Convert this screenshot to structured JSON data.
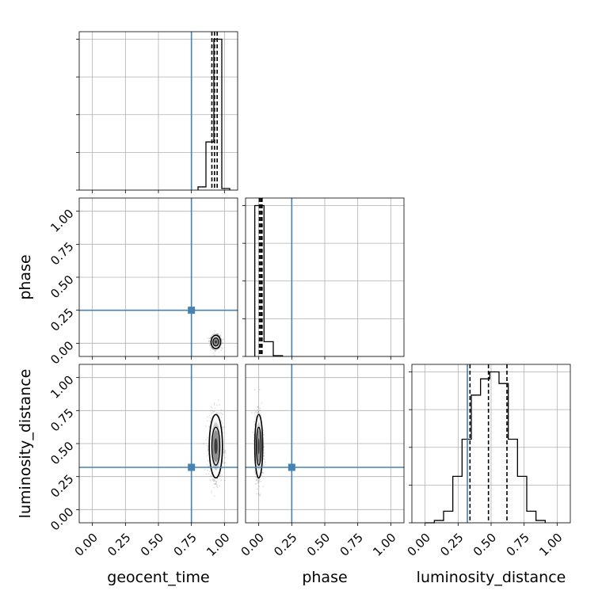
{
  "chart_data": {
    "type": "corner",
    "parameters": [
      "geocent_time",
      "phase",
      "luminosity_distance"
    ],
    "axis_labels": [
      "geocent_time",
      "phase",
      "luminosity_distance"
    ],
    "range": [
      -0.1,
      1.1
    ],
    "ticks": [
      0.0,
      0.25,
      0.5,
      0.75,
      1.0
    ],
    "tick_labels": [
      "0.00",
      "0.25",
      "0.50",
      "0.75",
      "1.00"
    ],
    "grid": true,
    "truth_color": "#4682b4",
    "line_color": "#000000",
    "truths": {
      "geocent_time": 0.75,
      "phase": 0.25,
      "luminosity_distance": 0.32
    },
    "histograms": {
      "geocent_time": {
        "bin_edges": [
          0.8,
          0.86,
          0.92,
          0.98,
          1.04
        ],
        "counts": [
          0.02,
          0.3,
          0.94,
          0.01
        ],
        "quantiles": [
          0.905,
          0.925,
          0.945
        ]
      },
      "phase": {
        "bin_edges": [
          -0.03,
          0.04,
          0.11,
          0.18
        ],
        "counts": [
          0.92,
          0.09,
          0.005
        ],
        "quantiles": [
          0.005,
          0.015,
          0.025
        ]
      },
      "luminosity_distance": {
        "bin_edges": [
          0.0,
          0.07,
          0.14,
          0.21,
          0.28,
          0.35,
          0.42,
          0.49,
          0.56,
          0.63,
          0.7,
          0.77,
          0.84,
          0.91
        ],
        "counts": [
          0.0,
          0.01,
          0.05,
          0.2,
          0.36,
          0.55,
          0.62,
          0.65,
          0.6,
          0.36,
          0.2,
          0.05,
          0.01
        ],
        "quantiles": [
          0.34,
          0.48,
          0.62
        ]
      }
    },
    "posterior_2d": [
      {
        "x": "geocent_time",
        "y": "phase",
        "center": [
          0.935,
          0.01
        ],
        "spread": [
          0.018,
          0.025
        ]
      },
      {
        "x": "geocent_time",
        "y": "luminosity_distance",
        "center": [
          0.935,
          0.48
        ],
        "spread": [
          0.025,
          0.12
        ]
      },
      {
        "x": "phase",
        "y": "luminosity_distance",
        "center": [
          0.0,
          0.48
        ],
        "spread": [
          0.015,
          0.12
        ]
      }
    ]
  }
}
